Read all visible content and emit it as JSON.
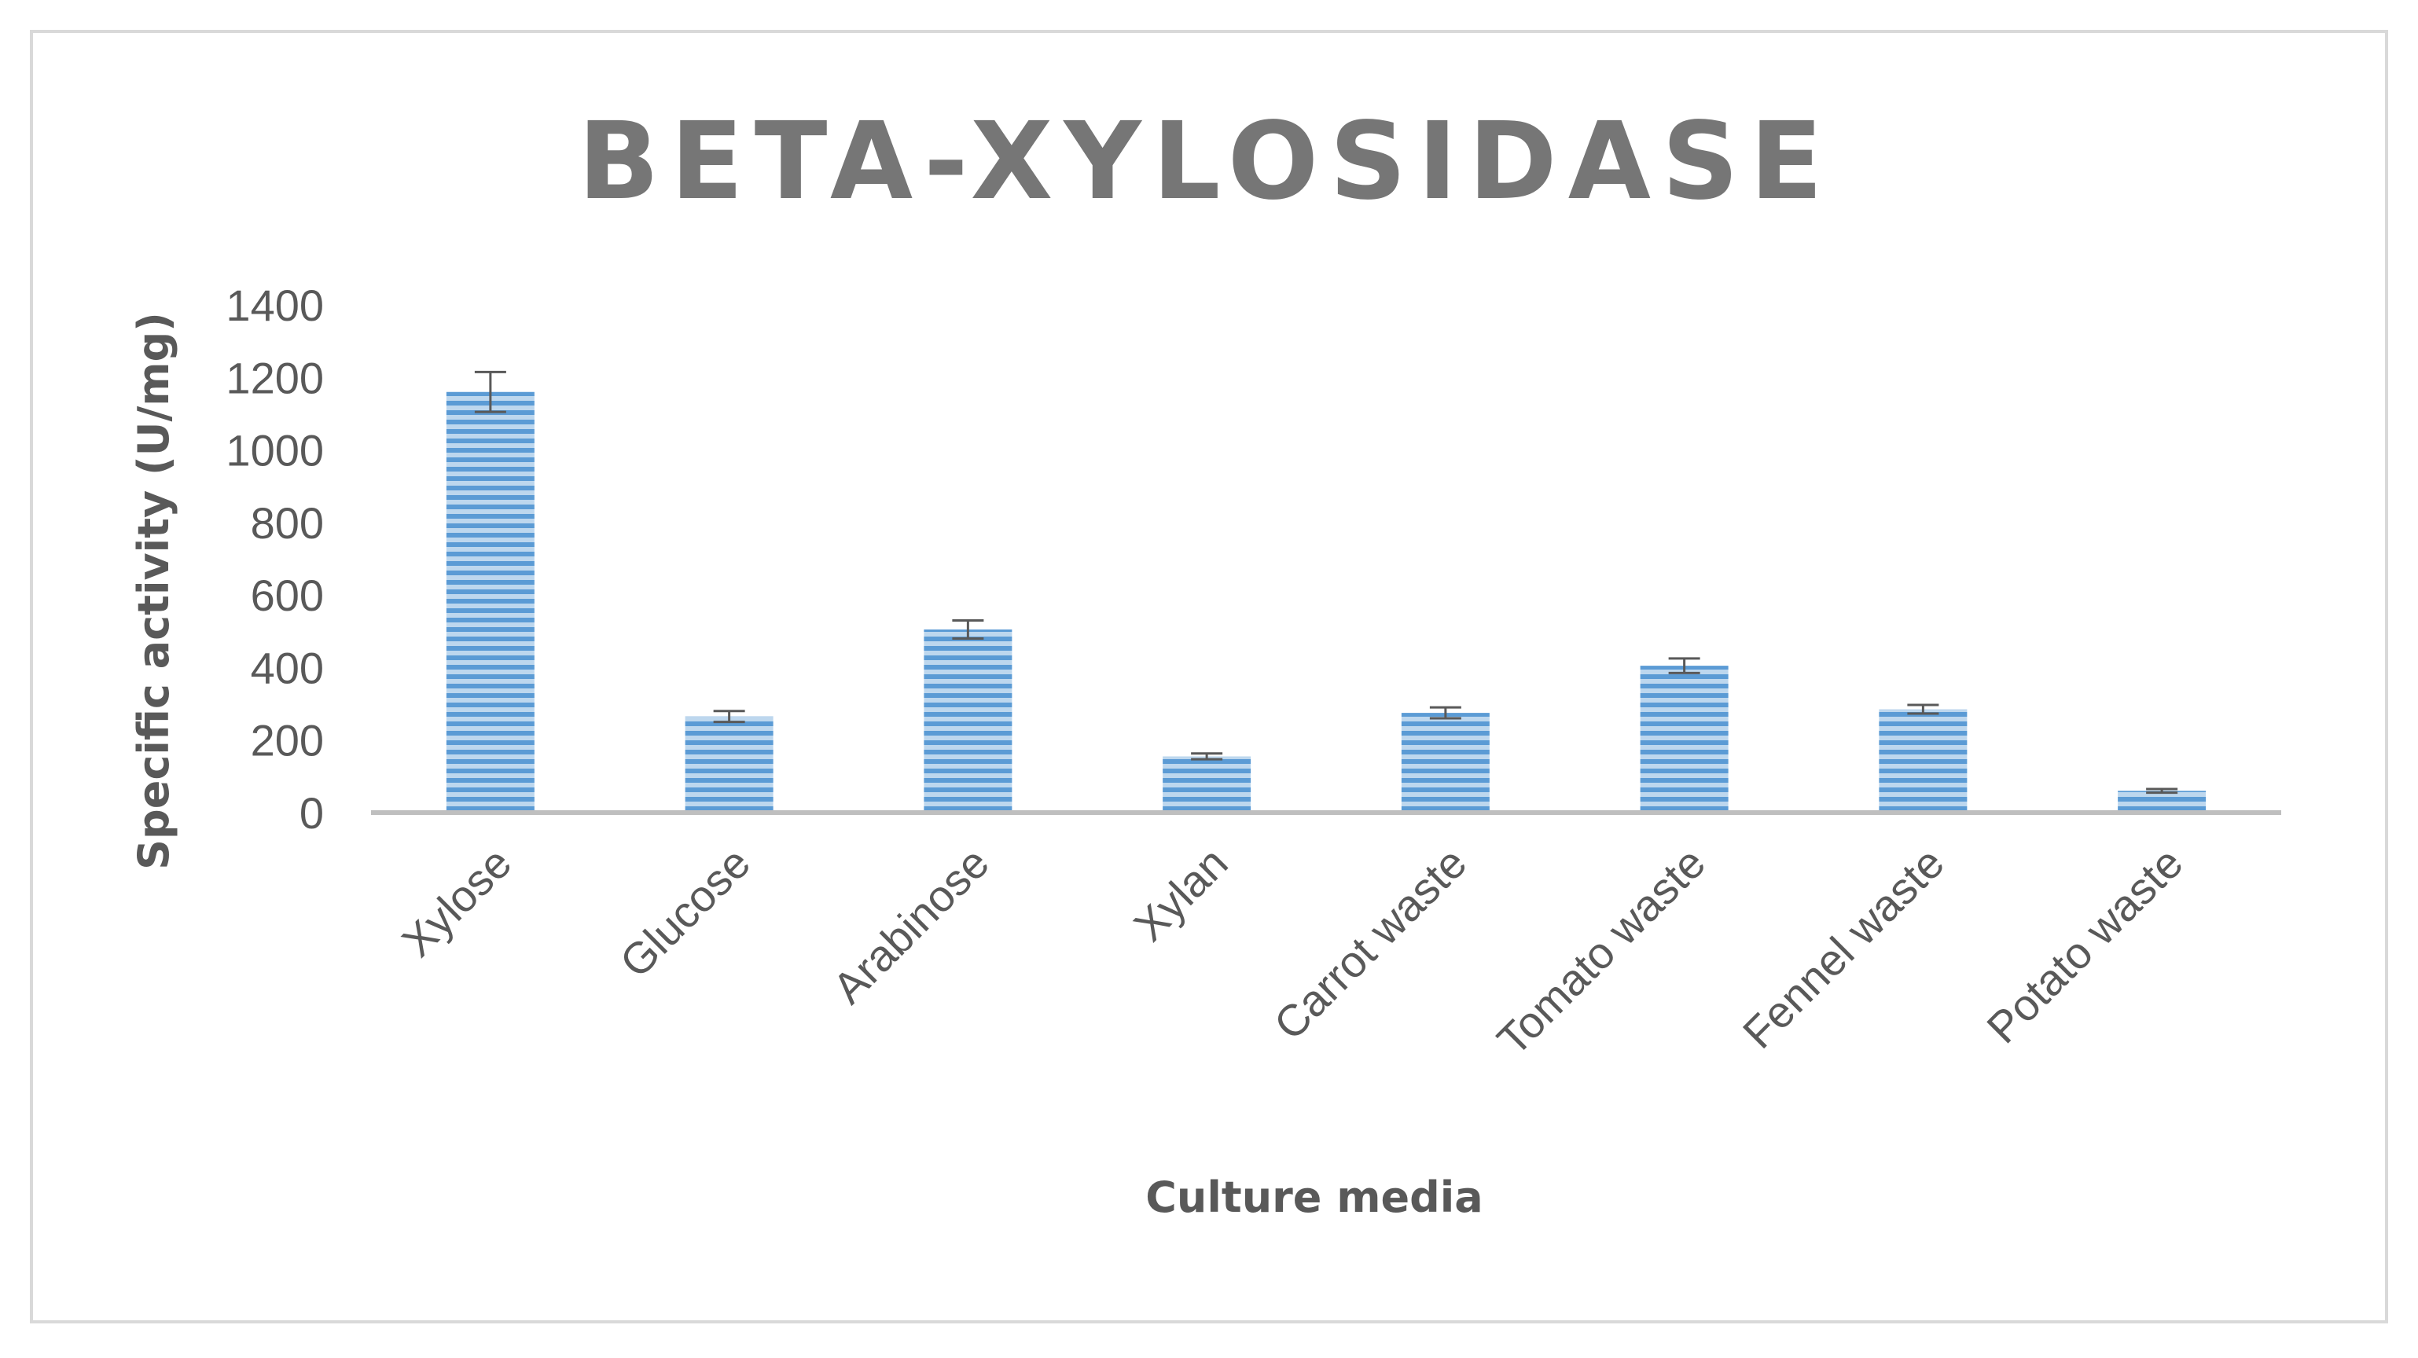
{
  "chart_data": {
    "type": "bar",
    "title": "BETA-XYLOSIDASE",
    "xlabel": "Culture media",
    "ylabel": "Specific activity (U/mg)",
    "ylim": [
      0,
      1400
    ],
    "yticks": [
      "0",
      "200",
      "400",
      "600",
      "800",
      "1000",
      "1200",
      "1400"
    ],
    "categories": [
      "Xylose",
      "Glucose",
      "Arabinose",
      "Xylan",
      "Carrot waste",
      "Tomato waste",
      "Fennel waste",
      "Potato waste"
    ],
    "values": [
      1160,
      265,
      505,
      155,
      275,
      405,
      285,
      60
    ],
    "errors": [
      55,
      15,
      25,
      8,
      15,
      20,
      12,
      5
    ],
    "grid": false,
    "legend": "none",
    "bar_color": "#5b9bd5"
  }
}
